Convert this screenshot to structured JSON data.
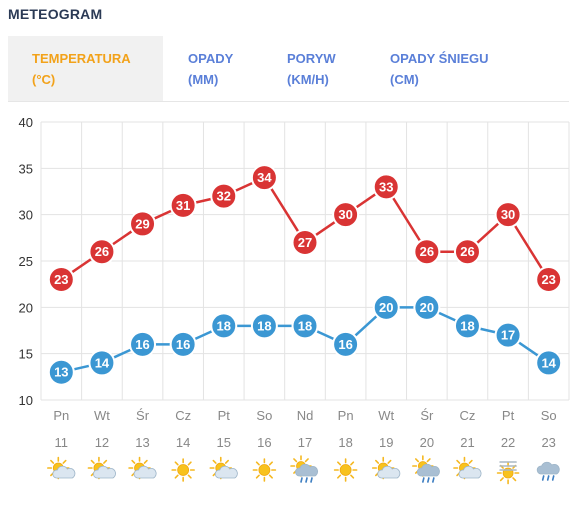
{
  "header": {
    "title": "METEOGRAM"
  },
  "tabs": [
    {
      "line1": "TEMPERATURA",
      "line2": "(°C)",
      "active": true
    },
    {
      "line1": "OPADY",
      "line2": "(MM)",
      "active": false
    },
    {
      "line1": "PORYW",
      "line2": "(KM/H)",
      "active": false
    },
    {
      "line1": "OPADY ŚNIEGU",
      "line2": "(CM)",
      "active": false
    }
  ],
  "colors": {
    "max": "#d93434",
    "min": "#3b97d3",
    "active_tab": "#f2a21a",
    "tab": "#5a7fd8"
  },
  "chart_data": {
    "type": "line",
    "title": "",
    "xlabel": "",
    "ylabel": "",
    "ylim": [
      10,
      40
    ],
    "yticks": [
      "10",
      "15",
      "20",
      "25",
      "30",
      "35",
      "40"
    ],
    "grid": true,
    "categories": [
      "Pn",
      "Wt",
      "Śr",
      "Cz",
      "Pt",
      "So",
      "Nd",
      "Pn",
      "Wt",
      "Śr",
      "Cz",
      "Pt",
      "So"
    ],
    "dates": [
      "11",
      "12",
      "13",
      "14",
      "15",
      "16",
      "17",
      "18",
      "19",
      "20",
      "21",
      "22",
      "23"
    ],
    "weather_icons": [
      "sun-cloud-icon",
      "sun-cloud-icon",
      "sun-cloud-icon",
      "sun-icon",
      "sun-cloud-icon",
      "sun-icon",
      "sun-cloud-rain-icon",
      "sun-icon",
      "sun-cloud-icon",
      "sun-cloud-rain-icon",
      "sun-cloud-icon",
      "sun-fog-icon",
      "cloud-rain-icon"
    ],
    "series": [
      {
        "values": [
          23,
          26,
          29,
          31,
          32,
          34,
          27,
          30,
          33,
          26,
          26,
          30,
          23
        ],
        "color": "#d93434"
      },
      {
        "values": [
          13,
          14,
          16,
          16,
          18,
          18,
          18,
          16,
          20,
          20,
          18,
          17,
          14
        ],
        "color": "#3b97d3"
      }
    ]
  }
}
